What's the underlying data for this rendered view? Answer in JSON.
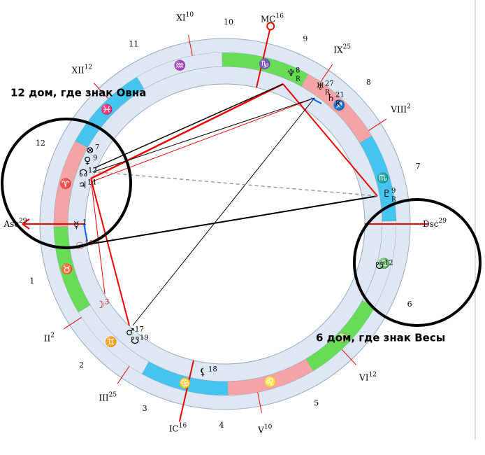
{
  "annotations": [
    "12 дом, где знак Овна",
    "6 дом, где знак Весы"
  ],
  "houses": [
    {
      "label": "Asc",
      "degree": 29
    },
    {
      "label": "II",
      "degree": 2
    },
    {
      "label": "III",
      "degree": 25
    },
    {
      "label": "IC",
      "degree": 16
    },
    {
      "label": "V",
      "degree": 10
    },
    {
      "label": "VI",
      "degree": 12
    },
    {
      "label": "Dsc",
      "degree": 29
    },
    {
      "label": "VIII",
      "degree": 2
    },
    {
      "label": "IX",
      "degree": 25
    },
    {
      "label": "MC",
      "degree": 16
    },
    {
      "label": "XI",
      "degree": 10
    },
    {
      "label": "XII",
      "degree": 12
    }
  ],
  "house_numbers": [
    1,
    2,
    3,
    4,
    5,
    6,
    7,
    8,
    9,
    10,
    11,
    12
  ],
  "signs": [
    "♈",
    "♉",
    "♊",
    "♋",
    "♌",
    "♍",
    "♎",
    "♏",
    "♐",
    "♑",
    "♒",
    "♓"
  ],
  "planets": [
    {
      "glyph": "♆",
      "degree": 8,
      "retro": "R"
    },
    {
      "glyph": "♅",
      "degree": 27,
      "retro": "R"
    },
    {
      "glyph": "♄",
      "degree": 21,
      "retro": "R"
    },
    {
      "glyph": "♇",
      "degree": 9,
      "retro": "R"
    },
    {
      "glyph": "☋",
      "degree": 12
    },
    {
      "glyph": "☽",
      "degree": 3
    },
    {
      "glyph": "♂",
      "degree": 17
    },
    {
      "glyph": "☋",
      "degree": 19
    },
    {
      "glyph": "⚸",
      "degree": 18
    },
    {
      "glyph": "☿",
      "degree": 1
    },
    {
      "glyph": "☉",
      "degree": 10
    },
    {
      "glyph": "♃",
      "degree": 14
    },
    {
      "glyph": "☊",
      "degree": 12
    },
    {
      "glyph": "♀",
      "degree": 9
    },
    {
      "glyph": "⊗",
      "degree": 7
    }
  ]
}
